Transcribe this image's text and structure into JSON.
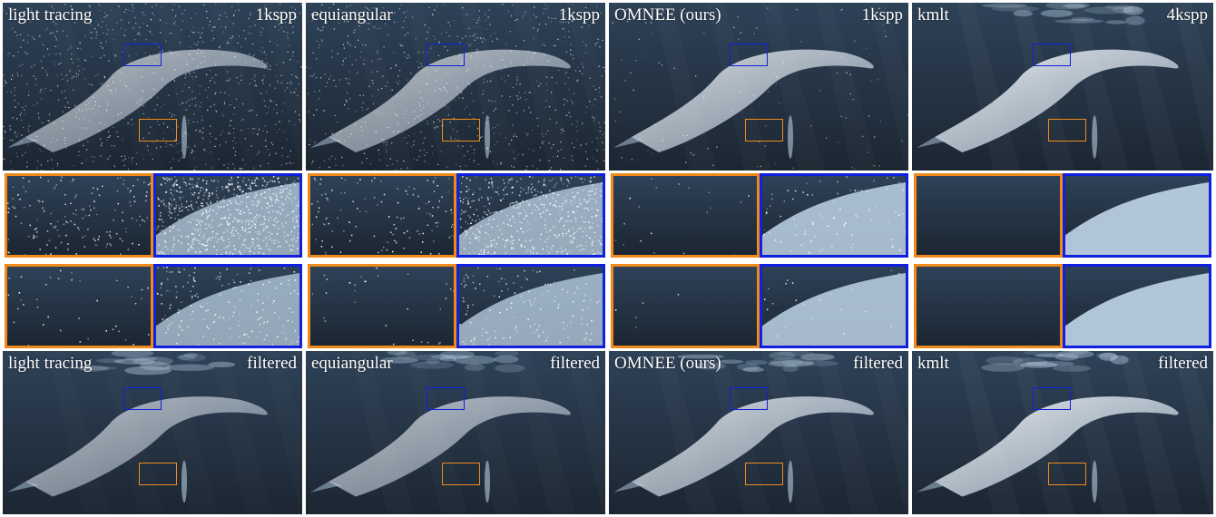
{
  "colors": {
    "orange": "#f08a1c",
    "blue": "#1020e0",
    "water_dark": "#1c2632",
    "water_light": "#2e4258",
    "whale": "#b8cde0"
  },
  "columns": [
    {
      "top_left": "light tracing",
      "top_right": "1kspp",
      "bottom_left": "light tracing",
      "bottom_right": "filtered",
      "noise_top": 1.0,
      "noise_crop": 1.0,
      "bright": 0.55
    },
    {
      "top_left": "equiangular",
      "top_right": "1kspp",
      "bottom_left": "equiangular",
      "bottom_right": "filtered",
      "noise_top": 0.85,
      "noise_crop": 0.75,
      "bright": 0.6
    },
    {
      "top_left": "OMNEE (ours)",
      "top_right": "1kspp",
      "bottom_left": "OMNEE (ours)",
      "bottom_right": "filtered",
      "noise_top": 0.12,
      "noise_crop": 0.12,
      "bright": 0.85
    },
    {
      "top_left": "kmlt",
      "top_right": "4kspp",
      "bottom_left": "kmlt",
      "bottom_right": "filtered",
      "noise_top": 0.0,
      "noise_crop": 0.0,
      "bright": 1.0
    }
  ]
}
